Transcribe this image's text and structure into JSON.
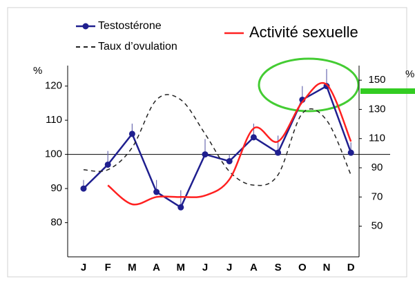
{
  "chart_data": {
    "type": "line",
    "categories": [
      "J",
      "F",
      "M",
      "A",
      "M",
      "J",
      "J",
      "A",
      "S",
      "O",
      "N",
      "D"
    ],
    "ylabel": "%",
    "y2label": "%",
    "ylim": [
      70,
      126
    ],
    "yticks": [
      80,
      90,
      100,
      110,
      120
    ],
    "y2lim": [
      29,
      160
    ],
    "y2ticks": [
      50,
      70,
      90,
      110,
      130,
      150
    ],
    "reference_line": 100,
    "series": [
      {
        "name": "Testostérone",
        "color": "#1f1f8f",
        "marker": true,
        "dash": false,
        "axis": "y",
        "values": [
          90,
          97,
          106,
          89,
          84.5,
          100,
          98,
          105,
          100.5,
          116,
          120,
          100.5
        ],
        "errors": [
          2.5,
          4,
          3,
          3.5,
          5,
          4.5,
          2,
          4,
          5,
          4,
          5,
          3
        ]
      },
      {
        "name": "Taux d’ovulation",
        "color": "#222222",
        "marker": false,
        "dash": true,
        "axis": "y",
        "values": [
          95.5,
          95.5,
          102,
          116,
          116,
          106,
          95,
          91,
          94,
          112,
          110,
          94
        ]
      },
      {
        "name": "Activité sexuelle",
        "color": "#ff2020",
        "marker": false,
        "dash": false,
        "axis": "y2",
        "values": [
          null,
          78,
          65,
          70,
          70,
          71,
          82,
          117,
          108,
          135,
          147,
          108
        ]
      }
    ]
  }
}
